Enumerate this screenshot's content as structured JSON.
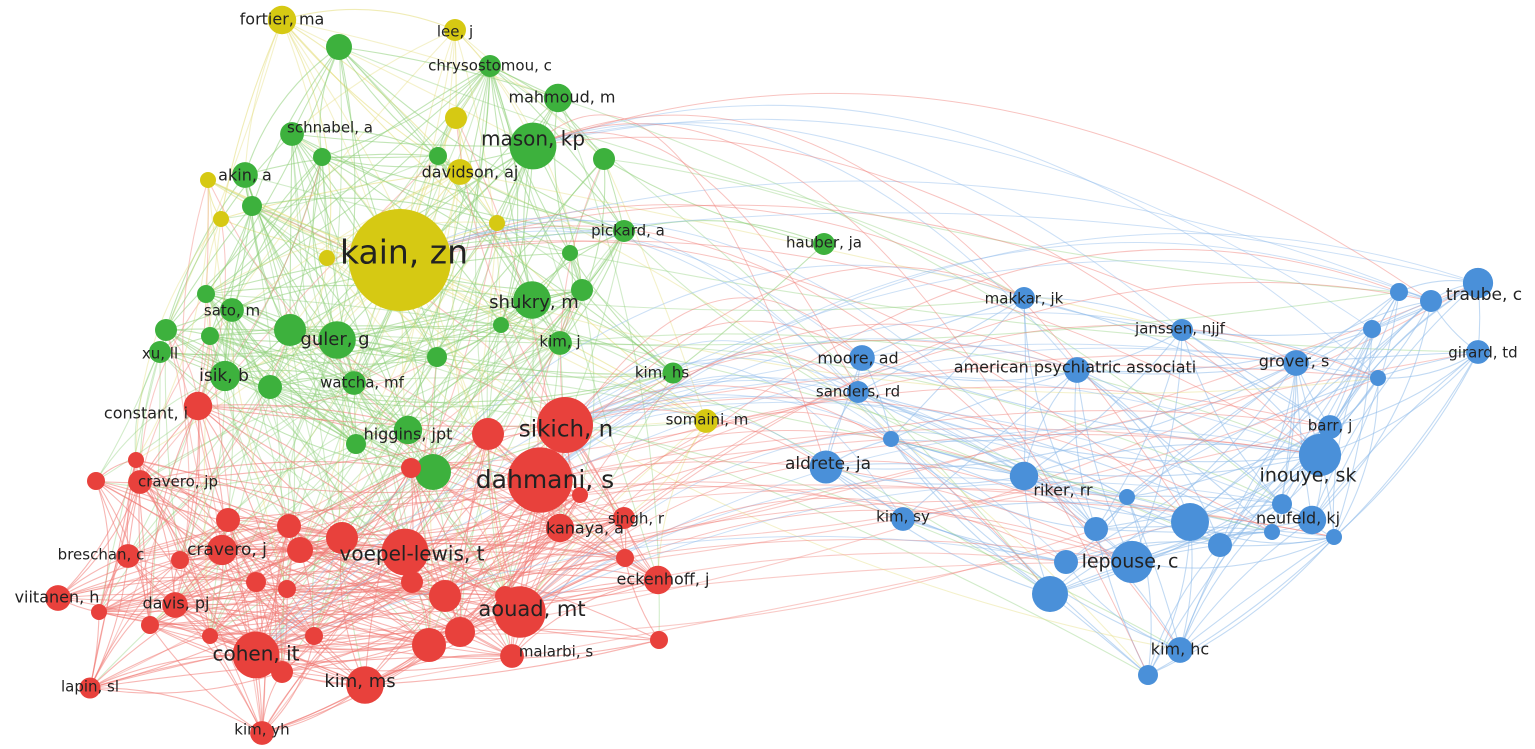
{
  "clusters": {
    "red": {
      "color": "#e8413c",
      "edge": "#f07a74"
    },
    "green": {
      "color": "#3db13d",
      "edge": "#8fd07a"
    },
    "blue": {
      "color": "#4a90d9",
      "edge": "#8fbbea"
    },
    "yellow": {
      "color": "#d6c913",
      "edge": "#e4dc7a"
    }
  },
  "nodes": [
    {
      "id": "kain",
      "label": "kain, zn",
      "cluster": "yellow",
      "weight": 10
    },
    {
      "id": "fortier",
      "label": "fortier, ma",
      "cluster": "yellow",
      "weight": 2
    },
    {
      "id": "lee",
      "label": "lee, j",
      "cluster": "yellow",
      "weight": 1.3
    },
    {
      "id": "chrysostomou",
      "label": "chrysostomou, c",
      "cluster": "green",
      "weight": 1.3
    },
    {
      "id": "mahmoud",
      "label": "mahmoud, m",
      "cluster": "green",
      "weight": 2
    },
    {
      "id": "mason",
      "label": "mason, kp",
      "cluster": "green",
      "weight": 4
    },
    {
      "id": "schnabel",
      "label": "schnabel, a",
      "cluster": "green",
      "weight": 1.5
    },
    {
      "id": "akin",
      "label": "akin, a",
      "cluster": "green",
      "weight": 1.7
    },
    {
      "id": "davidson",
      "label": "davidson, aj",
      "cluster": "yellow",
      "weight": 1.7
    },
    {
      "id": "pickard",
      "label": "pickard, a",
      "cluster": "green",
      "weight": 1.3
    },
    {
      "id": "hauber",
      "label": "hauber, ja",
      "cluster": "green",
      "weight": 1.3
    },
    {
      "id": "shukry",
      "label": "shukry, m",
      "cluster": "green",
      "weight": 3
    },
    {
      "id": "sato",
      "label": "sato, m",
      "cluster": "green",
      "weight": 1.5
    },
    {
      "id": "guler",
      "label": "guler, g",
      "cluster": "green",
      "weight": 3
    },
    {
      "id": "kimj",
      "label": "kim, j",
      "cluster": "green",
      "weight": 1.5
    },
    {
      "id": "xu",
      "label": "xu, ll",
      "cluster": "green",
      "weight": 1.3
    },
    {
      "id": "isik",
      "label": "isik, b",
      "cluster": "green",
      "weight": 2.2
    },
    {
      "id": "watcha",
      "label": "watcha, mf",
      "cluster": "green",
      "weight": 1.5
    },
    {
      "id": "kimhs",
      "label": "kim, hs",
      "cluster": "green",
      "weight": 1.2
    },
    {
      "id": "constant",
      "label": "constant, i",
      "cluster": "red",
      "weight": 2
    },
    {
      "id": "sikich",
      "label": "sikich, n",
      "cluster": "red",
      "weight": 5
    },
    {
      "id": "somaini",
      "label": "somaini, m",
      "cluster": "yellow",
      "weight": 1.5
    },
    {
      "id": "higgins",
      "label": "higgins, jpt",
      "cluster": "green",
      "weight": 2
    },
    {
      "id": "dahmani",
      "label": "dahmani, s",
      "cluster": "red",
      "weight": 6
    },
    {
      "id": "craverojp",
      "label": "cravero, jp",
      "cluster": "red",
      "weight": 1.5
    },
    {
      "id": "kanaya",
      "label": "kanaya, a",
      "cluster": "red",
      "weight": 2
    },
    {
      "id": "singh",
      "label": "singh, r",
      "cluster": "red",
      "weight": 1.3
    },
    {
      "id": "breschan",
      "label": "breschan, c",
      "cluster": "red",
      "weight": 1.5
    },
    {
      "id": "craveroj",
      "label": "cravero, j",
      "cluster": "red",
      "weight": 2.2
    },
    {
      "id": "voepel",
      "label": "voepel-lewis, t",
      "cluster": "red",
      "weight": 4
    },
    {
      "id": "eckenhoff",
      "label": "eckenhoff, j",
      "cluster": "red",
      "weight": 2
    },
    {
      "id": "viitanen",
      "label": "viitanen, h",
      "cluster": "red",
      "weight": 1.7
    },
    {
      "id": "davis",
      "label": "davis, pj",
      "cluster": "red",
      "weight": 1.7
    },
    {
      "id": "aouad",
      "label": "aouad, mt",
      "cluster": "red",
      "weight": 4.5
    },
    {
      "id": "cohen",
      "label": "cohen, it",
      "cluster": "red",
      "weight": 4
    },
    {
      "id": "malarbi",
      "label": "malarbi, s",
      "cluster": "red",
      "weight": 1.5
    },
    {
      "id": "kimms",
      "label": "kim, ms",
      "cluster": "red",
      "weight": 3
    },
    {
      "id": "lapin",
      "label": "lapin, sl",
      "cluster": "red",
      "weight": 1.2
    },
    {
      "id": "kimyh",
      "label": "kim, yh",
      "cluster": "red",
      "weight": 1.5
    },
    {
      "id": "makkar",
      "label": "makkar, jk",
      "cluster": "blue",
      "weight": 1.3
    },
    {
      "id": "traube",
      "label": "traube, c",
      "cluster": "blue",
      "weight": 2.2
    },
    {
      "id": "janssen",
      "label": "janssen, njjf",
      "cluster": "blue",
      "weight": 1.3
    },
    {
      "id": "moore",
      "label": "moore, ad",
      "cluster": "blue",
      "weight": 1.7
    },
    {
      "id": "apa",
      "label": "american psychiatric associati",
      "cluster": "blue",
      "weight": 1.7
    },
    {
      "id": "grover",
      "label": "grover, s",
      "cluster": "blue",
      "weight": 1.7
    },
    {
      "id": "girard",
      "label": "girard, td",
      "cluster": "blue",
      "weight": 1.5
    },
    {
      "id": "sanders",
      "label": "sanders, rd",
      "cluster": "blue",
      "weight": 1.3
    },
    {
      "id": "barr",
      "label": "barr, j",
      "cluster": "blue",
      "weight": 1.5
    },
    {
      "id": "aldrete",
      "label": "aldrete, ja",
      "cluster": "blue",
      "weight": 2.5
    },
    {
      "id": "inouye",
      "label": "inouye, sk",
      "cluster": "blue",
      "weight": 3.5
    },
    {
      "id": "riker",
      "label": "riker, rr",
      "cluster": "blue",
      "weight": 2
    },
    {
      "id": "kimsy",
      "label": "kim, sy",
      "cluster": "blue",
      "weight": 1.5
    },
    {
      "id": "neufeld",
      "label": "neufeld, kj",
      "cluster": "blue",
      "weight": 2
    },
    {
      "id": "lepouse",
      "label": "lepouse, c",
      "cluster": "blue",
      "weight": 3.5
    },
    {
      "id": "kimhc",
      "label": "kim, hc",
      "cluster": "blue",
      "weight": 1.7
    }
  ]
}
